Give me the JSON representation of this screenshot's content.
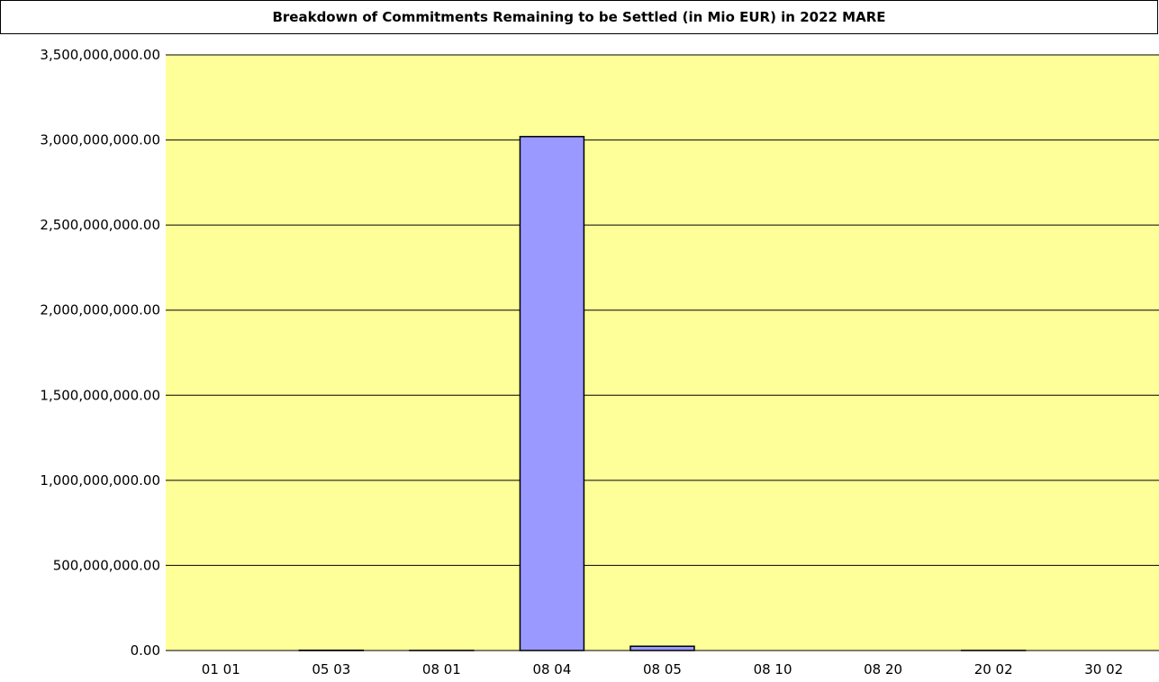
{
  "chart_data": {
    "type": "bar",
    "title": "Breakdown of Commitments Remaining to be Settled (in Mio EUR) in 2022 MARE",
    "xlabel": "",
    "ylabel": "",
    "categories": [
      "01 01",
      "05 03",
      "08 01",
      "08 04",
      "08 05",
      "08 10",
      "08 20",
      "20 02",
      "30 02"
    ],
    "values": [
      0,
      1500000,
      500000,
      3020000000,
      25000000,
      0,
      0,
      500000,
      0
    ],
    "ylim": [
      0,
      3500000000
    ],
    "yticks": [
      0,
      500000000,
      1000000000,
      1500000000,
      2000000000,
      2500000000,
      3000000000,
      3500000000
    ],
    "ytick_labels": [
      "0.00",
      "500,000,000.00",
      "1,000,000,000.00",
      "1,500,000,000.00",
      "2,000,000,000.00",
      "2,500,000,000.00",
      "3,000,000,000.00",
      "3,500,000,000.00"
    ],
    "grid": true,
    "legend": "none",
    "colors": {
      "plot_background": "#ffff99",
      "bar_fill": "#9999ff",
      "bar_stroke": "#000000",
      "grid": "#000000"
    }
  }
}
